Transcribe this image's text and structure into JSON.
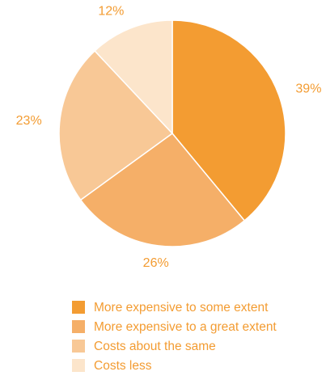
{
  "chart_data": {
    "type": "pie",
    "slices": [
      {
        "label": "More expensive to some extent",
        "value": 39,
        "value_label": "39%",
        "color": "#F39C32"
      },
      {
        "label": "More expensive to a great extent",
        "value": 26,
        "value_label": "26%",
        "color": "#F5AF68"
      },
      {
        "label": "Costs about the same",
        "value": 23,
        "value_label": "23%",
        "color": "#F8C896"
      },
      {
        "label": "Costs less",
        "value": 12,
        "value_label": "12%",
        "color": "#FCE5CB"
      }
    ],
    "label_color": "#F39C32",
    "legend_text_color": "#F39C32",
    "slice_border_color": "#ffffff",
    "legend_placement": "bottom",
    "start_angle_deg": 0,
    "direction": "clockwise"
  }
}
